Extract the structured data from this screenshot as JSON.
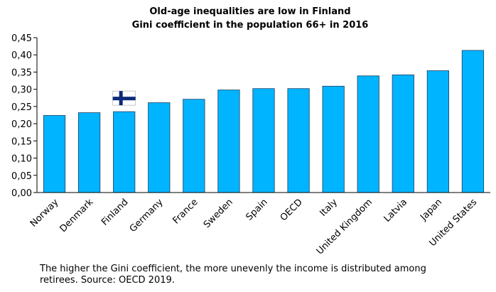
{
  "chart_data": {
    "type": "bar",
    "title": "Old-age inequalities are low in Finland",
    "subtitle": "Gini coefficient in the population 66+ in 2016",
    "categories": [
      "Norway",
      "Denmark",
      "Finland",
      "Germany",
      "France",
      "Sweden",
      "Spain",
      "OECD",
      "Italy",
      "United Kingdom",
      "Latvia",
      "Japan",
      "United States"
    ],
    "values": [
      0.224,
      0.232,
      0.235,
      0.261,
      0.271,
      0.298,
      0.302,
      0.302,
      0.309,
      0.339,
      0.342,
      0.354,
      0.413
    ],
    "ylim": [
      0,
      0.45
    ],
    "yticks": [
      "0,00",
      "0,05",
      "0,10",
      "0,15",
      "0,20",
      "0,25",
      "0,30",
      "0,35",
      "0,40",
      "0,45"
    ],
    "xlabel": "",
    "ylabel": "",
    "grid": false,
    "bar_color": "#00b4ff",
    "bar_edge_color": "#1f3f5f",
    "highlight": {
      "category": "Finland",
      "marker": "finland-flag-icon"
    }
  },
  "footnote": "The higher the Gini coefficient, the more unevenly the income is distributed among retirees. Source: OECD 2019."
}
